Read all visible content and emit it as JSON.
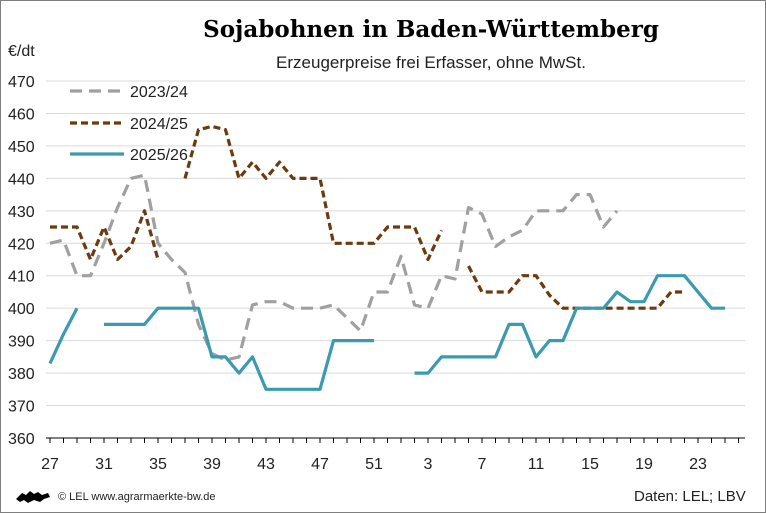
{
  "header": {
    "title": "Sojabohnen in Baden-Württemberg",
    "subtitle": "Erzeugerpreise frei Erfasser, ohne MwSt.",
    "unit": "€/dt"
  },
  "footer": {
    "copyright": "© LEL www.agrarmaerkte-bw.de",
    "source": "Daten: LEL; LBV",
    "logo_icon": "lion-logo-icon"
  },
  "chart_data": {
    "type": "line",
    "title": "Sojabohnen in Baden-Württemberg",
    "subtitle": "Erzeugerpreise frei Erfasser, ohne MwSt.",
    "xlabel": "",
    "ylabel": "€/dt",
    "ylim": [
      360,
      470
    ],
    "yticks": [
      360,
      370,
      380,
      390,
      400,
      410,
      420,
      430,
      440,
      450,
      460,
      470
    ],
    "x_weeks": [
      27,
      28,
      29,
      30,
      31,
      32,
      33,
      34,
      35,
      36,
      37,
      38,
      39,
      40,
      41,
      42,
      43,
      44,
      45,
      46,
      47,
      48,
      49,
      50,
      51,
      52,
      1,
      2,
      3,
      4,
      5,
      6,
      7,
      8,
      9,
      10,
      11,
      12,
      13,
      14,
      15,
      16,
      17,
      18,
      19,
      20,
      21,
      22,
      23,
      24,
      25,
      26
    ],
    "xtick_labels": [
      "27",
      "31",
      "35",
      "39",
      "43",
      "47",
      "51",
      "3",
      "7",
      "11",
      "15",
      "19",
      "23"
    ],
    "grid": "horizontal",
    "legend_position": "top-left",
    "series": [
      {
        "name": "2023/24",
        "color": "#a0a0a0",
        "style": "dashed",
        "values": [
          420,
          421,
          410,
          410,
          420,
          431,
          440,
          441,
          420,
          415,
          411,
          395,
          386,
          384,
          385,
          401,
          402,
          402,
          400,
          400,
          400,
          401,
          397,
          393,
          405,
          405,
          416,
          401,
          400,
          410,
          409,
          431,
          429,
          419,
          422,
          424,
          430,
          430,
          430,
          435,
          435,
          425,
          430
        ]
      },
      {
        "name": "2024/25",
        "color": "#6b3a0e",
        "style": "dashed",
        "values": [
          425,
          425,
          425,
          415,
          425,
          415,
          419,
          430,
          415,
          null,
          440,
          455,
          456,
          455,
          440,
          445,
          440,
          445,
          440,
          440,
          440,
          420,
          420,
          420,
          420,
          425,
          425,
          425,
          415,
          424,
          null,
          413,
          405,
          405,
          405,
          410,
          410,
          404,
          400,
          400,
          400,
          400,
          400,
          400,
          400,
          400,
          405,
          405
        ]
      },
      {
        "name": "2025/26",
        "color": "#3a9baf",
        "style": "solid",
        "values": [
          383,
          392,
          400,
          null,
          395,
          395,
          395,
          395,
          400,
          400,
          400,
          400,
          385,
          385,
          380,
          385,
          375,
          375,
          375,
          375,
          375,
          390,
          390,
          390,
          390,
          null,
          null,
          380,
          380,
          385,
          385,
          385,
          385,
          385,
          395,
          395,
          385,
          390,
          390,
          400,
          400,
          400,
          405,
          402,
          402,
          410,
          410,
          410,
          405,
          400,
          400
        ]
      }
    ]
  }
}
